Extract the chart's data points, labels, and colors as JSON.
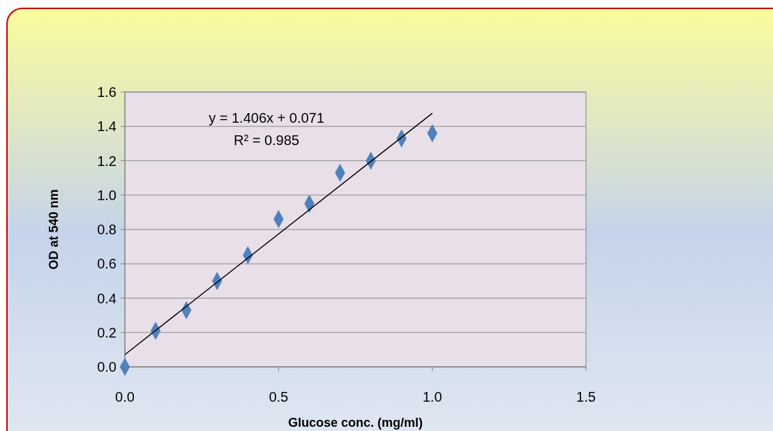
{
  "chart_data": {
    "type": "scatter",
    "xlabel": "Glucose conc. (mg/ml)",
    "ylabel": "OD at 540 nm",
    "annotations": [
      "y = 1.406x + 0.071",
      "R² = 0.985"
    ],
    "series": [
      {
        "color": "#4f81bd",
        "marker": "diamond",
        "x": [
          0,
          0.1,
          0.2,
          0.3,
          0.4,
          0.5,
          0.6,
          0.7,
          0.8,
          0.9,
          1.0
        ],
        "values": [
          0,
          0.21,
          0.33,
          0.5,
          0.65,
          0.86,
          0.95,
          1.13,
          1.2,
          1.33,
          1.36
        ]
      },
      {
        "type": "line",
        "color": "#000000",
        "x": [
          0,
          1.0
        ],
        "values": [
          0.071,
          1.477
        ]
      }
    ],
    "xlim": [
      0,
      1.5
    ],
    "ylim": [
      0,
      1.6
    ],
    "xticks": [
      {
        "value": 0,
        "label": "0.0"
      },
      {
        "value": 0.5,
        "label": "0.5"
      },
      {
        "value": 1,
        "label": "1.0"
      },
      {
        "value": 1.5,
        "label": "1.5"
      }
    ],
    "yticks": [
      {
        "value": 0,
        "label": "0.0"
      },
      {
        "value": 0.2,
        "label": "0.2"
      },
      {
        "value": 0.4,
        "label": "0.4"
      },
      {
        "value": 0.6,
        "label": "0.6"
      },
      {
        "value": 0.8,
        "label": "0.8"
      },
      {
        "value": 1,
        "label": "1.0"
      },
      {
        "value": 1.2,
        "label": "1.2"
      },
      {
        "value": 1.4,
        "label": "1.4"
      },
      {
        "value": 1.6,
        "label": "1.6"
      }
    ],
    "grid": "y"
  }
}
